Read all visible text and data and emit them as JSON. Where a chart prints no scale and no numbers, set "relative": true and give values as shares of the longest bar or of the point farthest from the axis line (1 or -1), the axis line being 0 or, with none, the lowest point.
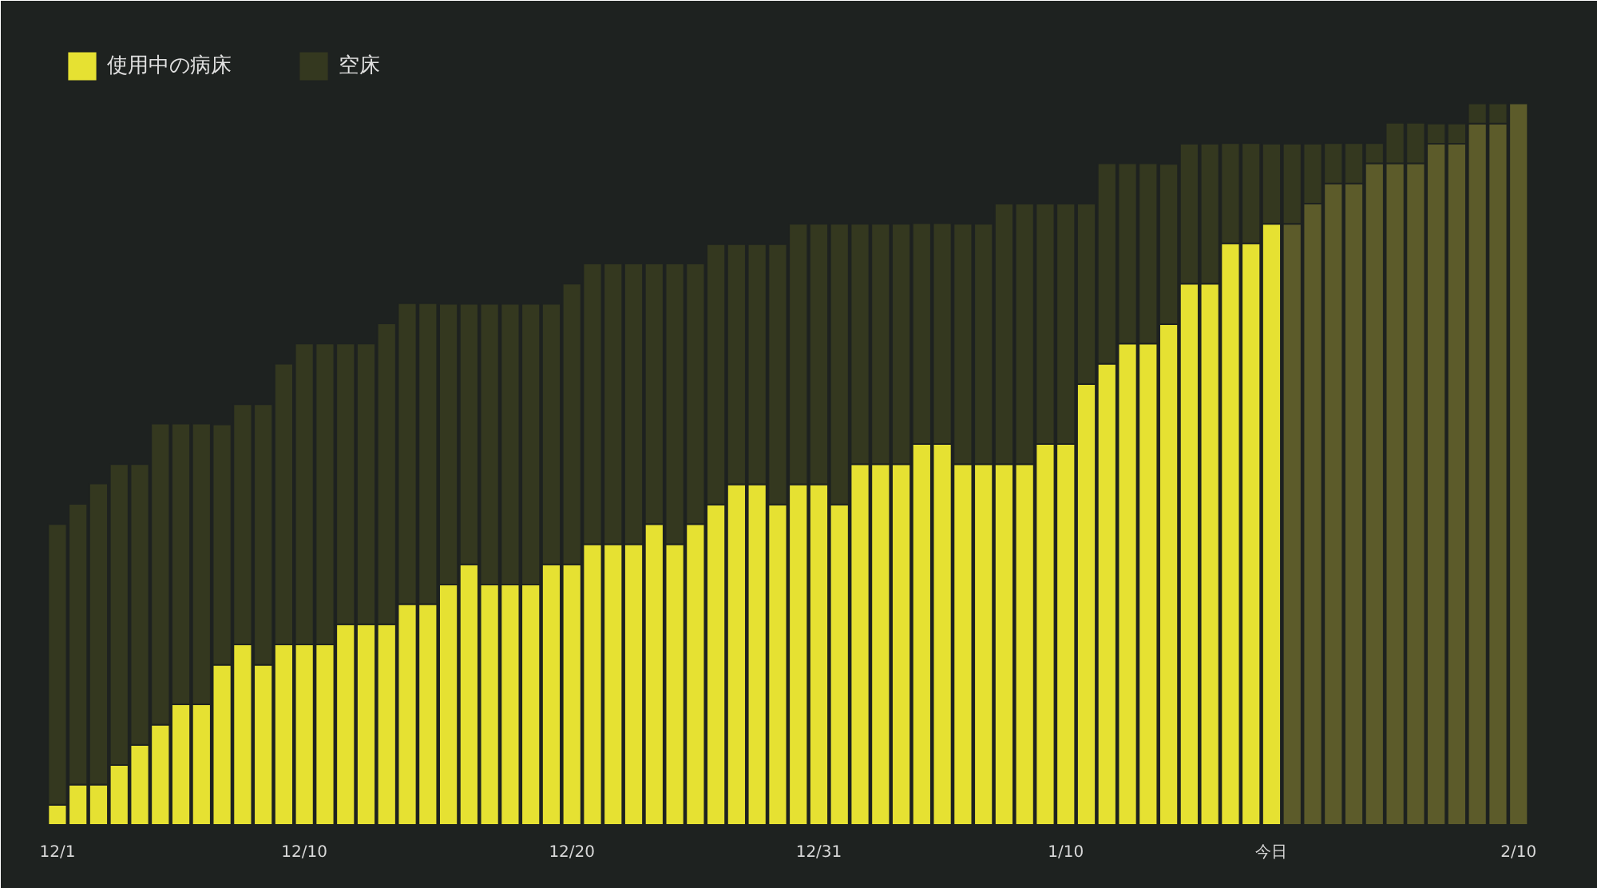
{
  "chart_data": {
    "type": "bar",
    "stacked": true,
    "relative": true,
    "grid": false,
    "legend": "top left",
    "categories": [
      "12/1",
      null,
      null,
      null,
      null,
      null,
      null,
      null,
      null,
      null,
      null,
      null,
      "12/10",
      null,
      null,
      null,
      null,
      null,
      null,
      null,
      null,
      null,
      null,
      null,
      null,
      "12/20",
      null,
      null,
      null,
      null,
      null,
      null,
      null,
      null,
      null,
      null,
      null,
      "12/31",
      null,
      null,
      null,
      null,
      null,
      null,
      null,
      null,
      null,
      null,
      null,
      "1/10",
      null,
      null,
      null,
      null,
      null,
      null,
      null,
      null,
      null,
      "今日",
      null,
      null,
      null,
      null,
      null,
      null,
      null,
      null,
      null,
      null,
      null,
      "2/10"
    ],
    "series": [
      {
        "name": "使用中の病床",
        "color": "#e6e132",
        "colors": [
          "#e6e132",
          "#e6e132",
          "#e6e132",
          "#e6e132",
          "#e6e132",
          "#e6e132",
          "#e6e132",
          "#e6e132",
          "#e6e132",
          "#e6e132",
          "#e6e132",
          "#e6e132",
          "#e6e132",
          "#e6e132",
          "#e6e132",
          "#e6e132",
          "#e6e132",
          "#e6e132",
          "#e6e132",
          "#e6e132",
          "#e6e132",
          "#e6e132",
          "#e6e132",
          "#e6e132",
          "#e6e132",
          "#e6e132",
          "#e6e132",
          "#e6e132",
          "#e6e132",
          "#e6e132",
          "#e6e132",
          "#e6e132",
          "#e6e132",
          "#e6e132",
          "#e6e132",
          "#e6e132",
          "#e6e132",
          "#e6e132",
          "#e6e132",
          "#e6e132",
          "#e6e132",
          "#e6e132",
          "#e6e132",
          "#e6e132",
          "#e6e132",
          "#e6e132",
          "#e6e132",
          "#e6e132",
          "#e6e132",
          "#e6e132",
          "#e6e132",
          "#e6e132",
          "#e6e132",
          "#e6e132",
          "#e6e132",
          "#e6e132",
          "#e6e132",
          "#e6e132",
          "#e6e132",
          "#e6e132",
          "#5c5b2a",
          "#5c5b2a",
          "#5c5b2a",
          "#5c5b2a",
          "#5c5b2a",
          "#5c5b2a",
          "#5c5b2a",
          "#5c5b2a",
          "#5c5b2a",
          "#5c5b2a",
          "#5c5b2a",
          "#5c5b2a"
        ],
        "values": [
          0.028,
          0.056,
          0.056,
          0.083,
          0.111,
          0.139,
          0.167,
          0.167,
          0.222,
          0.25,
          0.222,
          0.25,
          0.25,
          0.25,
          0.278,
          0.278,
          0.278,
          0.306,
          0.306,
          0.333,
          0.361,
          0.333,
          0.333,
          0.333,
          0.361,
          0.361,
          0.389,
          0.389,
          0.389,
          0.417,
          0.389,
          0.417,
          0.444,
          0.472,
          0.472,
          0.444,
          0.472,
          0.472,
          0.444,
          0.5,
          0.5,
          0.5,
          0.528,
          0.528,
          0.5,
          0.5,
          0.5,
          0.5,
          0.528,
          0.528,
          0.611,
          0.639,
          0.667,
          0.667,
          0.694,
          0.75,
          0.75,
          0.806,
          0.806,
          0.833,
          0.833,
          0.861,
          0.889,
          0.889,
          0.917,
          0.917,
          0.917,
          0.944,
          0.944,
          0.972,
          0.972,
          1
        ]
      },
      {
        "name": "空床",
        "color": "#34381f",
        "values": [
          0.389,
          0.389,
          0.417,
          0.417,
          0.389,
          0.417,
          0.389,
          0.389,
          0.333,
          0.333,
          0.361,
          0.389,
          0.417,
          0.417,
          0.389,
          0.389,
          0.417,
          0.417,
          0.417,
          0.389,
          0.361,
          0.389,
          0.389,
          0.389,
          0.361,
          0.389,
          0.389,
          0.389,
          0.389,
          0.361,
          0.389,
          0.361,
          0.361,
          0.333,
          0.333,
          0.361,
          0.361,
          0.361,
          0.389,
          0.333,
          0.333,
          0.333,
          0.306,
          0.306,
          0.333,
          0.333,
          0.361,
          0.361,
          0.333,
          0.333,
          0.25,
          0.278,
          0.25,
          0.25,
          0.222,
          0.194,
          0.194,
          0.139,
          0.139,
          0.111,
          0.111,
          0.083,
          0.056,
          0.056,
          0.028,
          0.056,
          0.056,
          0.028,
          0.028,
          0.028,
          0.028,
          0
        ]
      }
    ]
  }
}
